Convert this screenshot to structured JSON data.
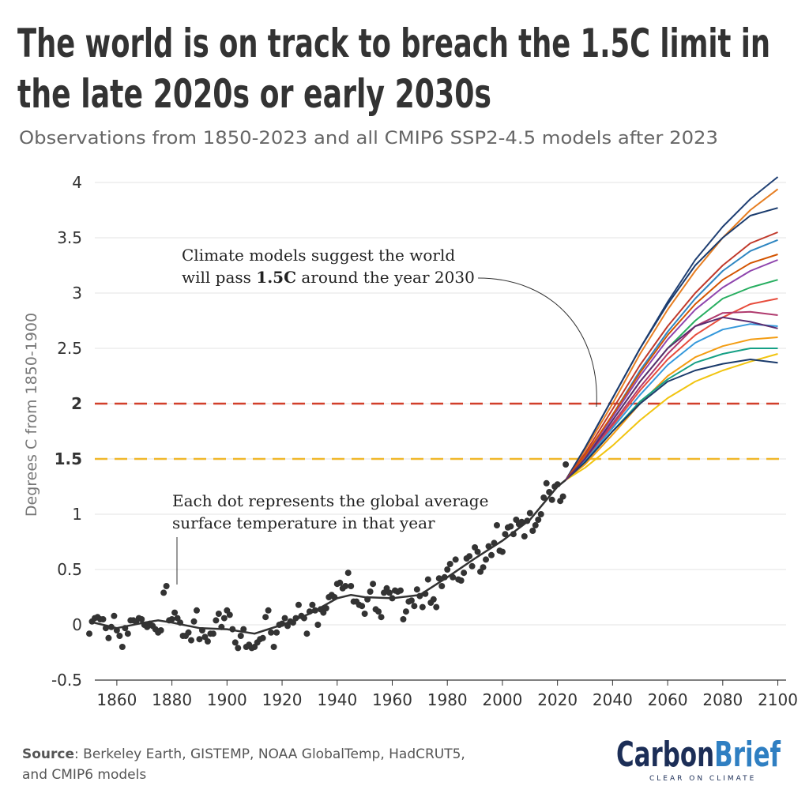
{
  "chart_data": {
    "type": "scatter",
    "title": [
      "The world is on track to breach the 1.5C limit in",
      "the late 2020s or early 2030s"
    ],
    "subtitle": "Observations from 1850-2023 and all CMIP6 SSP2-4.5 models after 2023",
    "y_label": "Degrees C from 1850-1900",
    "x": [
      1850,
      1851,
      1852,
      1853,
      1854,
      1855,
      1856,
      1857,
      1858,
      1859,
      1860,
      1861,
      1862,
      1863,
      1864,
      1865,
      1866,
      1867,
      1868,
      1869,
      1870,
      1871,
      1872,
      1873,
      1874,
      1875,
      1876,
      1877,
      1878,
      1879,
      1880,
      1881,
      1882,
      1883,
      1884,
      1885,
      1886,
      1887,
      1888,
      1889,
      1890,
      1891,
      1892,
      1893,
      1894,
      1895,
      1896,
      1897,
      1898,
      1899,
      1900,
      1901,
      1902,
      1903,
      1904,
      1905,
      1906,
      1907,
      1908,
      1909,
      1910,
      1911,
      1912,
      1913,
      1914,
      1915,
      1916,
      1917,
      1918,
      1919,
      1920,
      1921,
      1922,
      1923,
      1924,
      1925,
      1926,
      1927,
      1928,
      1929,
      1930,
      1931,
      1932,
      1933,
      1934,
      1935,
      1936,
      1937,
      1938,
      1939,
      1940,
      1941,
      1942,
      1943,
      1944,
      1945,
      1946,
      1947,
      1948,
      1949,
      1950,
      1951,
      1952,
      1953,
      1954,
      1955,
      1956,
      1957,
      1958,
      1959,
      1960,
      1961,
      1962,
      1963,
      1964,
      1965,
      1966,
      1967,
      1968,
      1969,
      1970,
      1971,
      1972,
      1973,
      1974,
      1975,
      1976,
      1977,
      1978,
      1979,
      1980,
      1981,
      1982,
      1983,
      1984,
      1985,
      1986,
      1987,
      1988,
      1989,
      1990,
      1991,
      1992,
      1993,
      1994,
      1995,
      1996,
      1997,
      1998,
      1999,
      2000,
      2001,
      2002,
      2003,
      2004,
      2005,
      2006,
      2007,
      2008,
      2009,
      2010,
      2011,
      2012,
      2013,
      2014,
      2015,
      2016,
      2017,
      2018,
      2019,
      2020,
      2021,
      2022,
      2023
    ],
    "values": [
      -0.08,
      0.03,
      0.06,
      0.07,
      0.05,
      0.05,
      -0.03,
      -0.12,
      -0.02,
      0.08,
      -0.05,
      -0.1,
      -0.2,
      -0.03,
      -0.08,
      0.04,
      0.04,
      0.03,
      0.06,
      0.05,
      0.0,
      -0.02,
      0.01,
      -0.01,
      -0.04,
      -0.07,
      -0.05,
      0.29,
      0.35,
      0.04,
      0.05,
      0.11,
      0.06,
      0.02,
      -0.1,
      -0.1,
      -0.07,
      -0.14,
      0.03,
      0.13,
      -0.13,
      -0.05,
      -0.11,
      -0.15,
      -0.08,
      -0.08,
      0.04,
      0.1,
      -0.02,
      0.06,
      0.13,
      0.09,
      -0.04,
      -0.16,
      -0.21,
      -0.1,
      -0.04,
      -0.2,
      -0.18,
      -0.21,
      -0.2,
      -0.16,
      -0.13,
      -0.12,
      0.07,
      0.13,
      -0.07,
      -0.2,
      -0.07,
      0.0,
      0.01,
      0.06,
      -0.01,
      0.03,
      0.02,
      0.06,
      0.18,
      0.08,
      0.06,
      -0.08,
      0.12,
      0.18,
      0.13,
      0.0,
      0.14,
      0.11,
      0.15,
      0.25,
      0.27,
      0.25,
      0.37,
      0.38,
      0.33,
      0.35,
      0.47,
      0.35,
      0.21,
      0.21,
      0.18,
      0.17,
      0.1,
      0.23,
      0.3,
      0.37,
      0.14,
      0.12,
      0.07,
      0.29,
      0.33,
      0.29,
      0.24,
      0.31,
      0.3,
      0.31,
      0.05,
      0.12,
      0.21,
      0.22,
      0.17,
      0.32,
      0.26,
      0.16,
      0.28,
      0.41,
      0.2,
      0.23,
      0.16,
      0.42,
      0.35,
      0.43,
      0.5,
      0.55,
      0.43,
      0.59,
      0.41,
      0.4,
      0.47,
      0.6,
      0.62,
      0.53,
      0.7,
      0.66,
      0.48,
      0.52,
      0.59,
      0.71,
      0.63,
      0.74,
      0.9,
      0.67,
      0.66,
      0.82,
      0.88,
      0.89,
      0.82,
      0.95,
      0.91,
      0.93,
      0.8,
      0.94,
      1.01,
      0.85,
      0.9,
      0.95,
      1.0,
      1.15,
      1.28,
      1.2,
      1.13,
      1.25,
      1.27,
      1.12,
      1.16,
      1.45
    ],
    "point_color": "#333333",
    "trend": {
      "color": "#333333",
      "x": [
        1850,
        1860,
        1870,
        1875,
        1880,
        1890,
        1900,
        1910,
        1920,
        1930,
        1940,
        1945,
        1950,
        1960,
        1970,
        1980,
        1990,
        2000,
        2010,
        2020,
        2023
      ],
      "values": [
        0.03,
        -0.03,
        0.02,
        0.04,
        0.02,
        -0.03,
        -0.04,
        -0.08,
        0.0,
        0.1,
        0.24,
        0.27,
        0.25,
        0.24,
        0.27,
        0.43,
        0.6,
        0.76,
        0.95,
        1.25,
        1.31
      ]
    },
    "models": {
      "x": [
        2023,
        2030,
        2040,
        2050,
        2060,
        2070,
        2080,
        2090,
        2100
      ],
      "series": [
        {
          "color": "#1f3f73",
          "values": [
            1.31,
            1.6,
            2.05,
            2.5,
            2.92,
            3.3,
            3.6,
            3.85,
            4.05
          ]
        },
        {
          "color": "#e67e22",
          "values": [
            1.31,
            1.58,
            2.0,
            2.45,
            2.85,
            3.2,
            3.5,
            3.75,
            3.94
          ]
        },
        {
          "color": "#1b3c6e",
          "values": [
            1.31,
            1.6,
            2.05,
            2.5,
            2.9,
            3.25,
            3.5,
            3.7,
            3.77
          ]
        },
        {
          "color": "#c0392b",
          "values": [
            1.31,
            1.55,
            1.95,
            2.35,
            2.7,
            3.0,
            3.25,
            3.45,
            3.55
          ]
        },
        {
          "color": "#2e86c1",
          "values": [
            1.31,
            1.5,
            1.9,
            2.3,
            2.65,
            2.95,
            3.2,
            3.38,
            3.48
          ]
        },
        {
          "color": "#8e44ad",
          "values": [
            1.31,
            1.52,
            1.88,
            2.25,
            2.58,
            2.85,
            3.05,
            3.2,
            3.3
          ]
        },
        {
          "color": "#27ae60",
          "values": [
            1.31,
            1.5,
            1.85,
            2.2,
            2.5,
            2.75,
            2.95,
            3.05,
            3.12
          ]
        },
        {
          "color": "#e74c3c",
          "values": [
            1.31,
            1.48,
            1.8,
            2.12,
            2.4,
            2.62,
            2.78,
            2.9,
            2.95
          ]
        },
        {
          "color": "#b03a6e",
          "values": [
            1.31,
            1.5,
            1.82,
            2.15,
            2.45,
            2.7,
            2.82,
            2.83,
            2.8
          ]
        },
        {
          "color": "#3498db",
          "values": [
            1.31,
            1.48,
            1.78,
            2.08,
            2.35,
            2.55,
            2.67,
            2.72,
            2.7
          ]
        },
        {
          "color": "#f39c12",
          "values": [
            1.31,
            1.45,
            1.72,
            2.0,
            2.25,
            2.42,
            2.52,
            2.58,
            2.6
          ]
        },
        {
          "color": "#16a085",
          "values": [
            1.31,
            1.47,
            1.75,
            2.02,
            2.22,
            2.37,
            2.45,
            2.5,
            2.5
          ]
        },
        {
          "color": "#f1c40f",
          "values": [
            1.31,
            1.42,
            1.62,
            1.85,
            2.05,
            2.2,
            2.3,
            2.38,
            2.45
          ]
        },
        {
          "color": "#1a3a6b",
          "values": [
            1.31,
            1.47,
            1.75,
            2.0,
            2.2,
            2.3,
            2.36,
            2.4,
            2.37
          ]
        },
        {
          "color": "#d35400",
          "values": [
            1.31,
            1.53,
            1.9,
            2.28,
            2.62,
            2.9,
            3.12,
            3.27,
            3.35
          ]
        },
        {
          "color": "#5b2c6f",
          "values": [
            1.31,
            1.5,
            1.85,
            2.2,
            2.5,
            2.7,
            2.78,
            2.74,
            2.68
          ]
        }
      ]
    },
    "xlim": [
      1852,
      2103
    ],
    "xticks": [
      1860,
      1880,
      1900,
      1920,
      1940,
      1960,
      1980,
      2000,
      2020,
      2040,
      2060,
      2080,
      2100
    ],
    "ylim": [
      -0.5,
      4
    ],
    "yticks": [
      -0.5,
      0,
      0.5,
      1,
      1.5,
      2,
      2.5,
      3,
      3.5,
      4
    ],
    "grid": true,
    "reference_lines": [
      {
        "value": 2,
        "color": "#d13f2a"
      },
      {
        "value": 1.5,
        "color": "#f0b72b"
      }
    ],
    "annotations": [
      {
        "lines": [
          [
            {
              "text": "Climate models suggest the world"
            }
          ],
          [
            {
              "text": "will pass "
            },
            {
              "text": "1.5C",
              "bold": true
            },
            {
              "text": " around the year 2030"
            }
          ]
        ]
      },
      {
        "lines": [
          [
            {
              "text": "Each dot represents the global average"
            }
          ],
          [
            {
              "text": "surface temperature in that year"
            }
          ]
        ]
      }
    ],
    "source": {
      "label": "Source",
      "lines": [
        ": Berkeley Earth, GISTEMP, NOAA GlobalTemp, HadCRUT5,",
        "and CMIP6 models"
      ]
    },
    "logo": {
      "parts": [
        "Carbon",
        "Brief"
      ],
      "tagline": "CLEAR ON CLIMATE"
    }
  }
}
